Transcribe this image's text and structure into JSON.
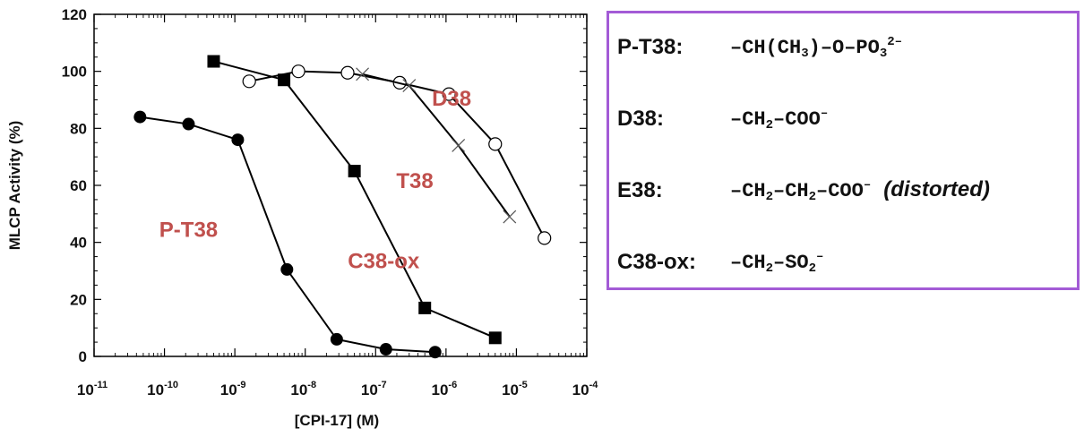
{
  "chart_data": {
    "type": "line",
    "xscale": "log",
    "xlabel": "[CPI-17] (M)",
    "ylabel": "MLCP Activity (%)",
    "xlim": [
      1e-11,
      0.0001
    ],
    "ylim": [
      0,
      120
    ],
    "xtick_exponents": [
      "-11",
      "-10",
      "-9",
      "-8",
      "-7",
      "-6",
      "-5",
      "-4"
    ],
    "xtick_base": "10",
    "yticks": [
      0,
      20,
      40,
      60,
      80,
      100,
      120
    ],
    "grid": false,
    "series": [
      {
        "name": "P-T38",
        "marker": "filled-circle",
        "x": [
          4.5e-11,
          2.2e-10,
          1.1e-09,
          5.5e-09,
          2.8e-08,
          1.4e-07,
          7e-07
        ],
        "y": [
          84,
          81.5,
          76,
          30.5,
          6,
          2.5,
          1.5
        ]
      },
      {
        "name": "C38-ox",
        "marker": "filled-square",
        "x": [
          5e-10,
          5e-09,
          5e-08,
          5e-07,
          5e-06
        ],
        "y": [
          103.5,
          97,
          65,
          17,
          6.5
        ]
      },
      {
        "name": "D38",
        "marker": "open-circle",
        "x": [
          1.6e-09,
          8e-09,
          4e-08,
          2.2e-07,
          1.1e-06,
          5e-06,
          2.5e-05
        ],
        "y": [
          96.5,
          100,
          99.5,
          96,
          92,
          74.5,
          41.5
        ]
      },
      {
        "name": "T38",
        "marker": "cross",
        "x": [
          6.5e-08,
          3e-07,
          1.5e-06,
          8e-06
        ],
        "y": [
          99,
          95,
          74,
          49
        ]
      }
    ],
    "annotations": [
      {
        "text": "P-T38",
        "x": 2.2e-10,
        "y": 42
      },
      {
        "text": "C38-ox",
        "x": 1.3e-07,
        "y": 31
      },
      {
        "text": "D38",
        "x": 1.2e-06,
        "y": 88
      },
      {
        "text": "T38",
        "x": 3.6e-07,
        "y": 59
      }
    ],
    "colors": {
      "annotation": "#c0504d",
      "line": "#000000",
      "legend_border": "#a35bd6"
    }
  },
  "legend": {
    "rows": [
      {
        "key": "P-T38:",
        "formula_html": "&#8211;CH(CH<sub>3</sub>)&#8211;O&#8211;PO<sub>3</sub><sup>2&#8211;</sup>",
        "note": ""
      },
      {
        "key": "D38:",
        "formula_html": "&#8211;CH<sub>2</sub>&#8211;COO<sup>&#8211;</sup>",
        "note": ""
      },
      {
        "key": "E38:",
        "formula_html": "&#8211;CH<sub>2</sub>&#8211;CH<sub>2</sub>&#8211;COO<sup>&#8211;</sup>",
        "note": "(distorted)"
      },
      {
        "key": "C38-ox:",
        "formula_html": "&#8211;CH<sub>2</sub>&#8211;SO<sub>2</sub><sup>&#8211;</sup>",
        "note": ""
      }
    ]
  }
}
